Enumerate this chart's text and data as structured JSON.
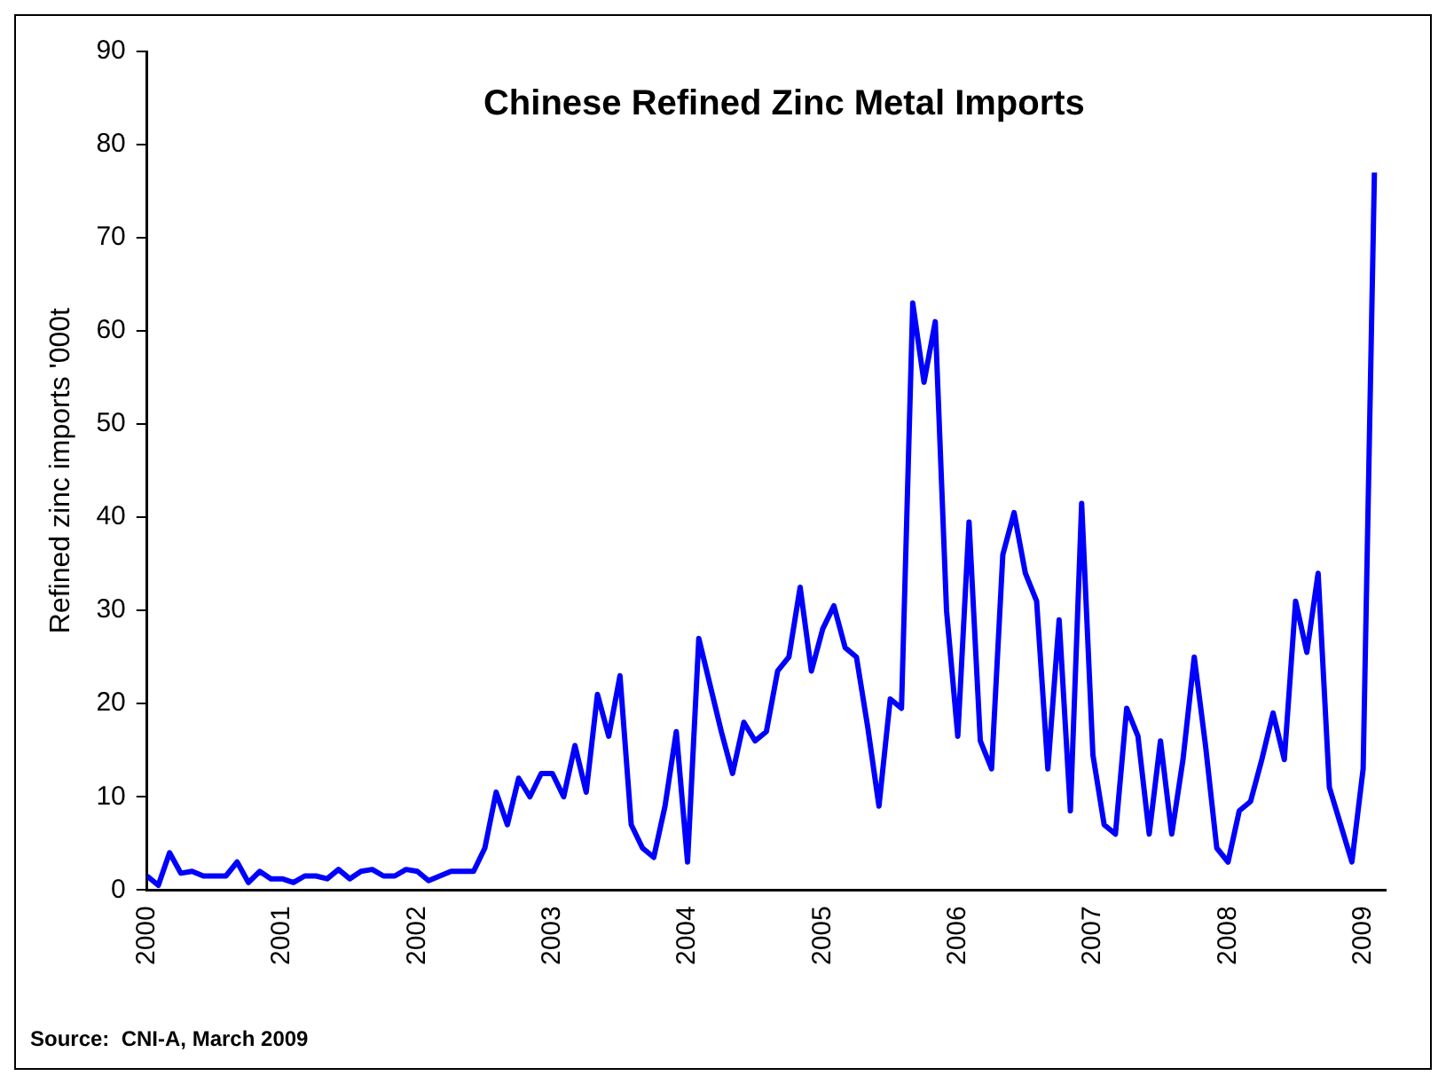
{
  "chart_data": {
    "type": "line",
    "title": "Chinese Refined Zinc Metal Imports",
    "ylabel": "Refined zinc imports '000t",
    "x": [
      "2000-01",
      "2000-02",
      "2000-03",
      "2000-04",
      "2000-05",
      "2000-06",
      "2000-07",
      "2000-08",
      "2000-09",
      "2000-10",
      "2000-11",
      "2000-12",
      "2001-01",
      "2001-02",
      "2001-03",
      "2001-04",
      "2001-05",
      "2001-06",
      "2001-07",
      "2001-08",
      "2001-09",
      "2001-10",
      "2001-11",
      "2001-12",
      "2002-01",
      "2002-02",
      "2002-03",
      "2002-04",
      "2002-05",
      "2002-06",
      "2002-07",
      "2002-08",
      "2002-09",
      "2002-10",
      "2002-11",
      "2002-12",
      "2003-01",
      "2003-02",
      "2003-03",
      "2003-04",
      "2003-05",
      "2003-06",
      "2003-07",
      "2003-08",
      "2003-09",
      "2003-10",
      "2003-11",
      "2003-12",
      "2004-01",
      "2004-02",
      "2004-03",
      "2004-04",
      "2004-05",
      "2004-06",
      "2004-07",
      "2004-08",
      "2004-09",
      "2004-10",
      "2004-11",
      "2004-12",
      "2005-01",
      "2005-02",
      "2005-03",
      "2005-04",
      "2005-05",
      "2005-06",
      "2005-07",
      "2005-08",
      "2005-09",
      "2005-10",
      "2005-11",
      "2005-12",
      "2006-01",
      "2006-02",
      "2006-03",
      "2006-04",
      "2006-05",
      "2006-06",
      "2006-07",
      "2006-08",
      "2006-09",
      "2006-10",
      "2006-11",
      "2006-12",
      "2007-01",
      "2007-02",
      "2007-03",
      "2007-04",
      "2007-05",
      "2007-06",
      "2007-07",
      "2007-08",
      "2007-09",
      "2007-10",
      "2007-11",
      "2007-12",
      "2008-01",
      "2008-02",
      "2008-03",
      "2008-04",
      "2008-05",
      "2008-06",
      "2008-07",
      "2008-08",
      "2008-09",
      "2008-10",
      "2008-11",
      "2008-12",
      "2009-01",
      "2009-02"
    ],
    "series": [
      {
        "color": "#0000ff",
        "values": [
          1.5,
          0.5,
          4,
          1.8,
          2,
          1.5,
          1.5,
          1.5,
          3,
          0.8,
          2,
          1.2,
          1.2,
          0.8,
          1.5,
          1.5,
          1.2,
          2.2,
          1.2,
          2,
          2.2,
          1.5,
          1.5,
          2.2,
          2,
          1,
          1.5,
          2,
          2,
          2,
          4.5,
          10.5,
          7,
          12,
          10,
          12.5,
          12.5,
          10,
          15.5,
          10.5,
          21,
          16.5,
          23,
          7,
          4.5,
          3.5,
          9,
          17,
          3,
          27,
          22,
          17,
          12.5,
          18,
          16,
          17,
          23.5,
          25,
          32.5,
          23.5,
          28,
          30.5,
          26,
          25,
          17.5,
          9,
          20.5,
          19.5,
          63,
          54.5,
          61,
          30,
          16.5,
          39.5,
          16,
          13,
          36,
          40.5,
          34,
          31,
          13,
          29,
          8.5,
          41.5,
          14.5,
          7,
          6,
          19.5,
          16.5,
          6,
          16,
          6,
          14,
          25,
          15.5,
          4.5,
          3,
          8.5,
          9.5,
          14,
          19,
          14,
          31,
          25.5,
          34,
          11,
          7,
          3,
          13,
          77
        ]
      }
    ],
    "xlim": [
      "2000-01",
      "2009-03"
    ],
    "xticks": [
      "2000",
      "2001",
      "2002",
      "2003",
      "2004",
      "2005",
      "2006",
      "2007",
      "2008",
      "2009"
    ],
    "ylim": [
      0,
      90
    ],
    "yticks": [
      0,
      10,
      20,
      30,
      40,
      50,
      60,
      70,
      80,
      90
    ],
    "grid": false,
    "legend": false,
    "marker": "none",
    "line_style": "solid",
    "annotations": [
      "Source:  CNI-A, March 2009"
    ]
  }
}
